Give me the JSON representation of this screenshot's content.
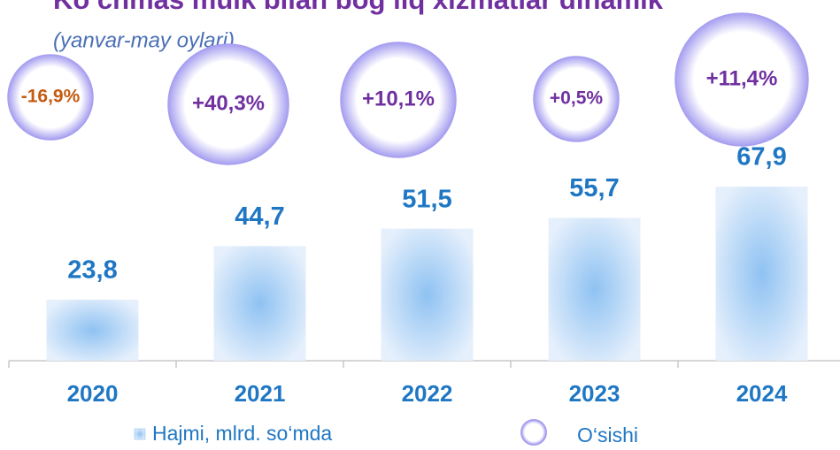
{
  "chart_data": {
    "type": "bar",
    "title": "Ko‘chmas mulk bilan bog‘liq xizmatlar dinamik",
    "subtitle": "(yanvar-may oylari)",
    "categories": [
      "2020",
      "2021",
      "2022",
      "2023",
      "2024"
    ],
    "series": [
      {
        "name": "Hajmi, mlrd. so‘mda",
        "color": "#7fb6ee",
        "values": [
          23.8,
          44.7,
          51.5,
          55.7,
          67.9
        ],
        "value_labels": [
          "23,8",
          "44,7",
          "51,5",
          "55,7",
          "67,9"
        ]
      },
      {
        "name": "O‘sishi",
        "color": "#a79ff0",
        "values": [
          -16.9,
          40.3,
          10.1,
          0.5,
          11.4
        ],
        "value_labels": [
          "-16,9%",
          "+40,3%",
          "+10,1%",
          "+0,5%",
          "+11,4%"
        ],
        "label_colors": [
          "#c55a11",
          "#7030a0",
          "#7030a0",
          "#7030a0",
          "#7030a0"
        ]
      }
    ],
    "ylim": [
      0,
      100
    ]
  }
}
